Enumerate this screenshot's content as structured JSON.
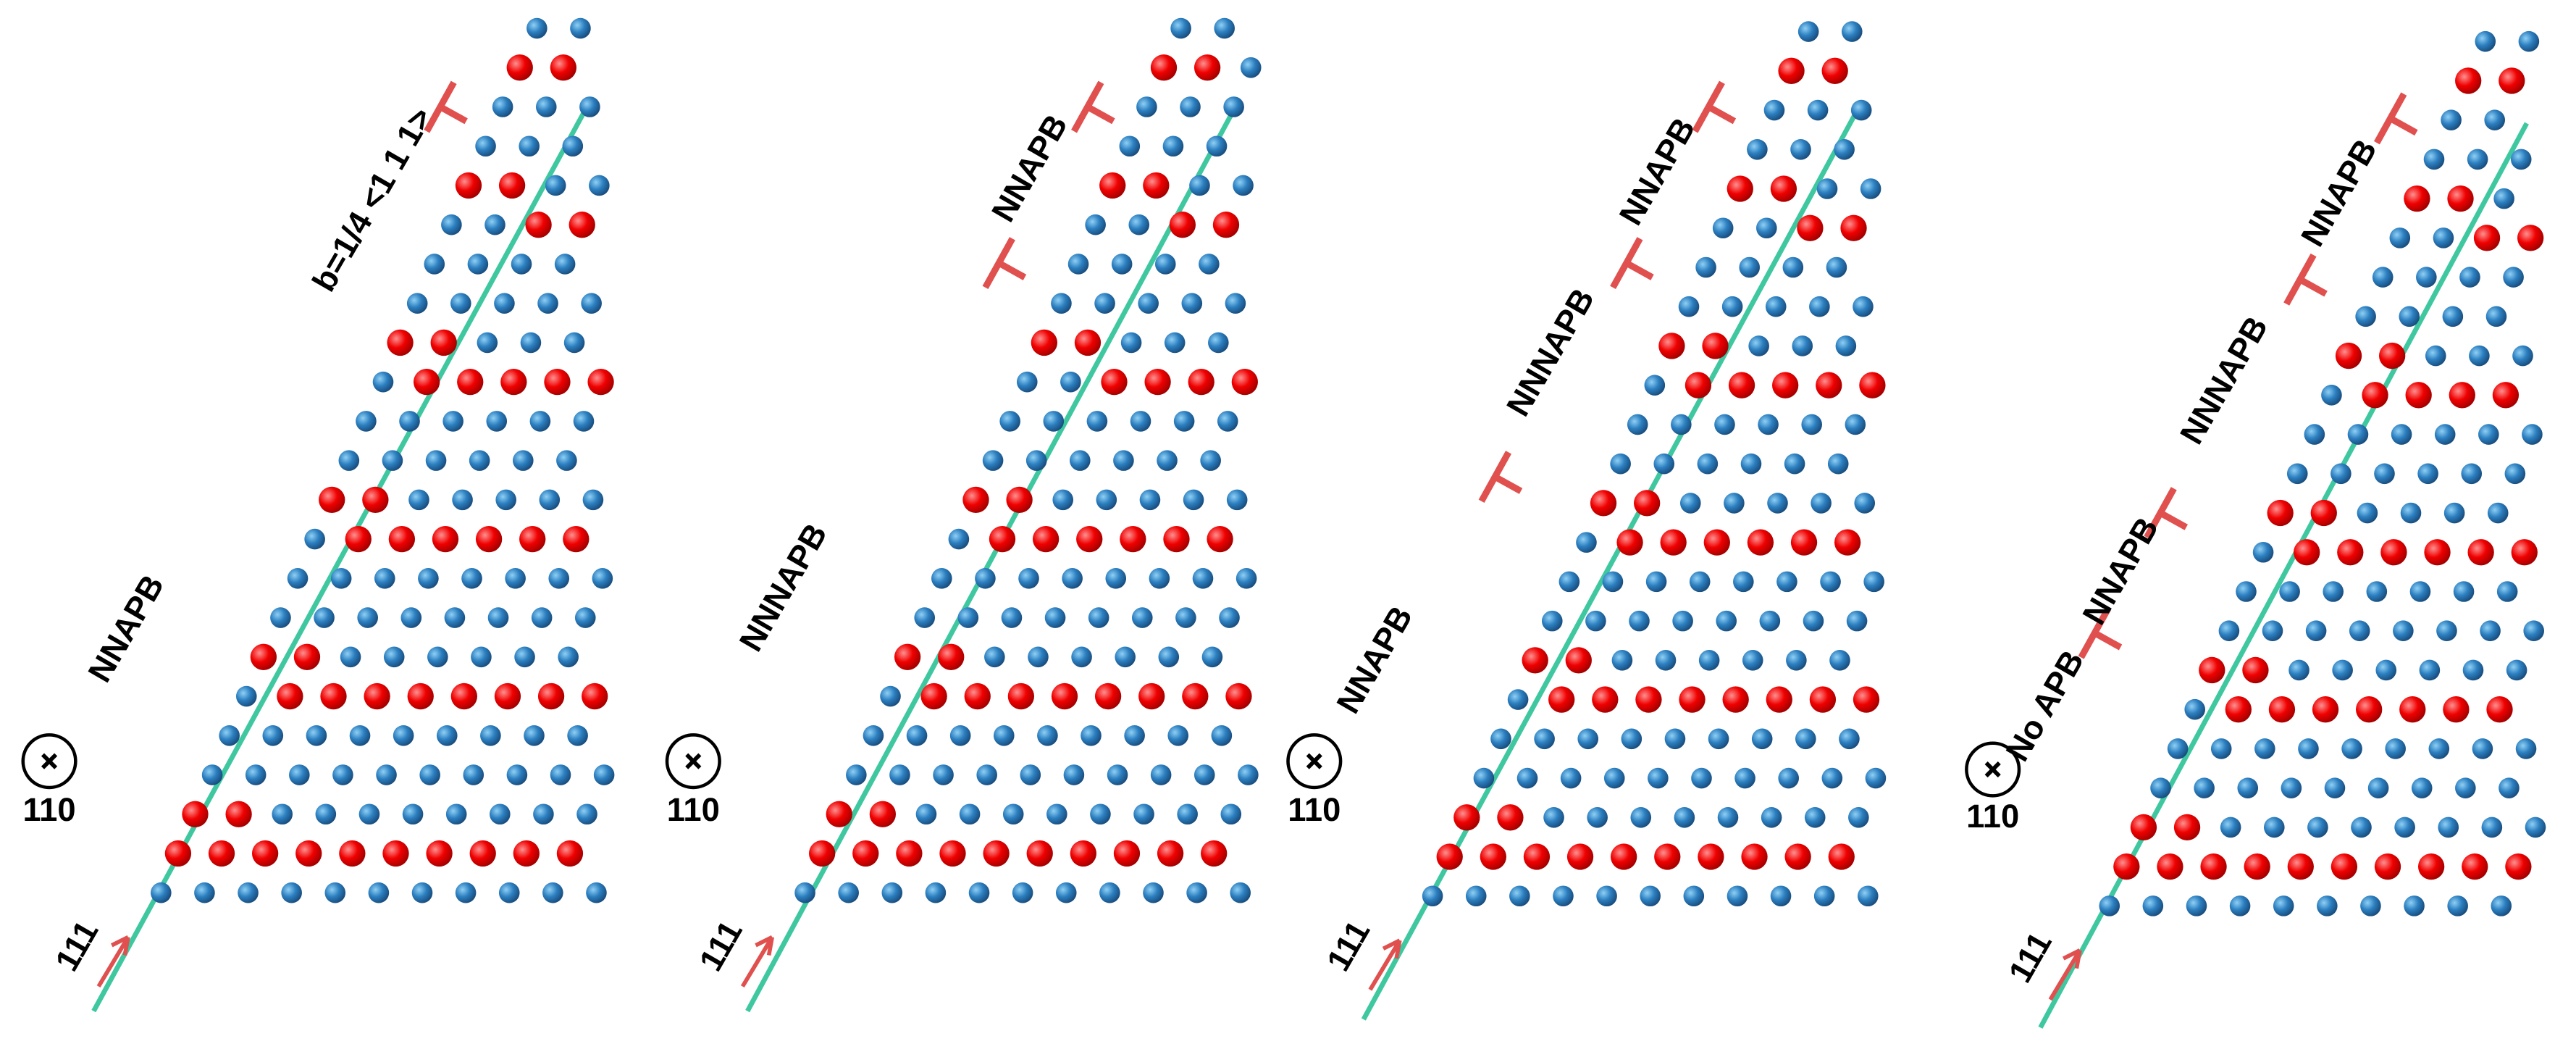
{
  "panels": [
    {
      "labels": [
        "b=1/4 <1 1 1>",
        "NNAPB"
      ],
      "view_direction": "110",
      "line_direction": "111"
    },
    {
      "labels": [
        "NNAPB",
        "NNNAPB"
      ],
      "view_direction": "110",
      "line_direction": "111"
    },
    {
      "labels": [
        "NNAPB",
        "NNNAPB",
        "NNAPB"
      ],
      "view_direction": "110",
      "line_direction": "111"
    },
    {
      "labels": [
        "NNAPB",
        "NNNAPB",
        "NNAPB",
        "No APB"
      ],
      "view_direction": "110",
      "line_direction": "111"
    }
  ]
}
